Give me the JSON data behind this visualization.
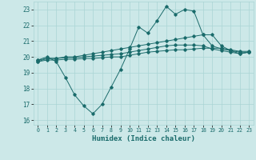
{
  "title": "",
  "xlabel": "Humidex (Indice chaleur)",
  "ylabel": "",
  "xlim": [
    -0.5,
    23.5
  ],
  "ylim": [
    15.7,
    23.5
  ],
  "yticks": [
    16,
    17,
    18,
    19,
    20,
    21,
    22,
    23
  ],
  "xticks": [
    0,
    1,
    2,
    3,
    4,
    5,
    6,
    7,
    8,
    9,
    10,
    11,
    12,
    13,
    14,
    15,
    16,
    17,
    18,
    19,
    20,
    21,
    22,
    23
  ],
  "background_color": "#cce8e8",
  "grid_color": "#aad4d4",
  "line_color": "#1a6b6b",
  "line1_x": [
    0,
    1,
    2,
    3,
    4,
    5,
    6,
    7,
    8,
    9,
    10,
    11,
    12,
    13,
    14,
    15,
    16,
    17,
    18,
    19,
    20,
    21,
    22,
    23
  ],
  "line1_y": [
    19.8,
    20.0,
    19.7,
    18.7,
    17.6,
    16.9,
    16.4,
    17.0,
    18.1,
    19.2,
    20.5,
    21.9,
    21.5,
    22.3,
    23.2,
    22.7,
    23.0,
    22.9,
    21.4,
    21.4,
    20.7,
    20.4,
    20.2,
    20.3
  ],
  "line2_x": [
    0,
    1,
    2,
    3,
    4,
    5,
    6,
    7,
    8,
    9,
    10,
    11,
    12,
    13,
    14,
    15,
    16,
    17,
    18,
    19,
    20,
    21,
    22,
    23
  ],
  "line2_y": [
    19.8,
    19.9,
    19.9,
    20.0,
    20.0,
    20.1,
    20.2,
    20.3,
    20.4,
    20.5,
    20.6,
    20.7,
    20.8,
    20.9,
    21.0,
    21.1,
    21.2,
    21.3,
    21.4,
    20.7,
    20.5,
    20.4,
    20.3,
    20.3
  ],
  "line3_x": [
    0,
    1,
    2,
    3,
    4,
    5,
    6,
    7,
    8,
    9,
    10,
    11,
    12,
    13,
    14,
    15,
    16,
    17,
    18,
    19,
    20,
    21,
    22,
    23
  ],
  "line3_y": [
    19.7,
    19.9,
    19.9,
    19.95,
    19.95,
    20.0,
    20.05,
    20.1,
    20.15,
    20.2,
    20.3,
    20.4,
    20.5,
    20.6,
    20.7,
    20.75,
    20.75,
    20.75,
    20.7,
    20.5,
    20.4,
    20.3,
    20.2,
    20.3
  ],
  "line4_x": [
    0,
    1,
    2,
    3,
    4,
    5,
    6,
    7,
    8,
    9,
    10,
    11,
    12,
    13,
    14,
    15,
    16,
    17,
    18,
    19,
    20,
    21,
    22,
    23
  ],
  "line4_y": [
    19.7,
    19.8,
    19.8,
    19.85,
    19.85,
    19.9,
    19.9,
    19.95,
    20.0,
    20.0,
    20.1,
    20.2,
    20.3,
    20.35,
    20.4,
    20.45,
    20.45,
    20.5,
    20.55,
    20.55,
    20.55,
    20.45,
    20.35,
    20.35
  ]
}
